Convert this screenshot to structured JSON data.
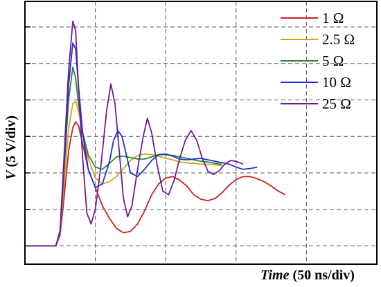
{
  "chart_data": {
    "type": "line",
    "title": "",
    "xlabel_var": "Time",
    "xlabel_unit": " (50 ns/div)",
    "ylabel_var": "V",
    "ylabel_unit": " (5 V/div)",
    "x_unit": "ns",
    "y_unit": "V",
    "xlim": [
      0,
      250
    ],
    "ylim": [
      -2.5,
      33.5
    ],
    "grid": true,
    "legend_position": "top-right",
    "series": [
      {
        "name": "1 Ω",
        "color": "#cc1f1f",
        "points": [
          [
            0,
            0
          ],
          [
            20,
            0
          ],
          [
            22,
            0
          ],
          [
            25,
            1.5
          ],
          [
            28,
            7
          ],
          [
            31,
            13
          ],
          [
            34,
            16.2
          ],
          [
            36,
            17
          ],
          [
            38,
            16.5
          ],
          [
            41,
            14
          ],
          [
            45,
            10.5
          ],
          [
            50,
            8
          ],
          [
            55,
            5.5
          ],
          [
            60,
            3.8
          ],
          [
            65,
            2.4
          ],
          [
            70,
            1.8
          ],
          [
            75,
            2
          ],
          [
            80,
            3
          ],
          [
            85,
            4.8
          ],
          [
            90,
            7
          ],
          [
            95,
            8.5
          ],
          [
            100,
            9.3
          ],
          [
            105,
            9.5
          ],
          [
            110,
            9
          ],
          [
            115,
            8.2
          ],
          [
            120,
            7
          ],
          [
            125,
            6.4
          ],
          [
            130,
            6.2
          ],
          [
            135,
            6.5
          ],
          [
            140,
            7.3
          ],
          [
            145,
            8.3
          ],
          [
            150,
            9.1
          ],
          [
            155,
            9.5
          ],
          [
            160,
            9.5
          ],
          [
            165,
            9.2
          ],
          [
            170,
            8.8
          ],
          [
            175,
            8.2
          ],
          [
            180,
            7.5
          ],
          [
            185,
            7
          ]
        ]
      },
      {
        "name": "2.5 Ω",
        "color": "#d6a11e",
        "points": [
          [
            0,
            0
          ],
          [
            20,
            0
          ],
          [
            22,
            0
          ],
          [
            25,
            1.8
          ],
          [
            28,
            9
          ],
          [
            31,
            16
          ],
          [
            34,
            19.5
          ],
          [
            36,
            19.8
          ],
          [
            38,
            18.5
          ],
          [
            41,
            15.5
          ],
          [
            45,
            12
          ],
          [
            50,
            9.3
          ],
          [
            55,
            8.5
          ],
          [
            60,
            8.8
          ],
          [
            65,
            9.5
          ],
          [
            70,
            10.6
          ],
          [
            75,
            11.7
          ],
          [
            80,
            12.4
          ],
          [
            85,
            12.6
          ],
          [
            90,
            12.5
          ],
          [
            95,
            12.3
          ],
          [
            100,
            12
          ],
          [
            105,
            11.8
          ],
          [
            110,
            11.5
          ],
          [
            115,
            11.4
          ],
          [
            120,
            11.3
          ],
          [
            125,
            11.2
          ],
          [
            130,
            11.2
          ],
          [
            135,
            11.1
          ],
          [
            140,
            11
          ]
        ]
      },
      {
        "name": "5 Ω",
        "color": "#2a8a2a",
        "points": [
          [
            0,
            0
          ],
          [
            20,
            0
          ],
          [
            22,
            0
          ],
          [
            25,
            2
          ],
          [
            28,
            11
          ],
          [
            31,
            20
          ],
          [
            34,
            24.5
          ],
          [
            36,
            23
          ],
          [
            38,
            19.5
          ],
          [
            41,
            15.5
          ],
          [
            45,
            12.5
          ],
          [
            50,
            10.8
          ],
          [
            55,
            10.5
          ],
          [
            60,
            11.3
          ],
          [
            65,
            12.2
          ],
          [
            70,
            12.3
          ],
          [
            75,
            12.1
          ],
          [
            80,
            11.9
          ],
          [
            85,
            11.9
          ],
          [
            90,
            12.2
          ],
          [
            95,
            12.5
          ],
          [
            100,
            12.5
          ],
          [
            105,
            12.4
          ],
          [
            110,
            12.2
          ],
          [
            115,
            12
          ],
          [
            120,
            11.8
          ],
          [
            125,
            11.6
          ],
          [
            130,
            11.5
          ],
          [
            135,
            11.3
          ],
          [
            140,
            11.2
          ]
        ]
      },
      {
        "name": "10 Ω",
        "color": "#1f2ed8",
        "points": [
          [
            0,
            0
          ],
          [
            20,
            0
          ],
          [
            22,
            0
          ],
          [
            25,
            2
          ],
          [
            28,
            12
          ],
          [
            31,
            22
          ],
          [
            34,
            27.8
          ],
          [
            36,
            27
          ],
          [
            38,
            22
          ],
          [
            41,
            15.5
          ],
          [
            45,
            10.5
          ],
          [
            50,
            8
          ],
          [
            55,
            8.5
          ],
          [
            60,
            11.5
          ],
          [
            63,
            14.5
          ],
          [
            66,
            15.8
          ],
          [
            69,
            15
          ],
          [
            72,
            12.5
          ],
          [
            75,
            10
          ],
          [
            80,
            9.5
          ],
          [
            85,
            10.5
          ],
          [
            90,
            11.7
          ],
          [
            95,
            12.5
          ],
          [
            100,
            12.6
          ],
          [
            105,
            12.3
          ],
          [
            110,
            11.9
          ],
          [
            115,
            11.8
          ],
          [
            120,
            11.9
          ],
          [
            125,
            12
          ],
          [
            130,
            11.8
          ],
          [
            135,
            11.6
          ],
          [
            140,
            11.4
          ],
          [
            145,
            11.2
          ],
          [
            150,
            10.8
          ],
          [
            155,
            10.5
          ],
          [
            160,
            10.6
          ],
          [
            165,
            10.8
          ]
        ]
      },
      {
        "name": "25 Ω",
        "color": "#6a1b9a",
        "points": [
          [
            0,
            0
          ],
          [
            20,
            0
          ],
          [
            22,
            0
          ],
          [
            25,
            2.2
          ],
          [
            28,
            13
          ],
          [
            31,
            24
          ],
          [
            34,
            30.8
          ],
          [
            36,
            29.5
          ],
          [
            38,
            22
          ],
          [
            41,
            12
          ],
          [
            44,
            4.5
          ],
          [
            47,
            3
          ],
          [
            50,
            5
          ],
          [
            54,
            11
          ],
          [
            58,
            18.5
          ],
          [
            61,
            22.2
          ],
          [
            64,
            19.5
          ],
          [
            67,
            13
          ],
          [
            70,
            6.5
          ],
          [
            73,
            4
          ],
          [
            76,
            5.5
          ],
          [
            80,
            10.5
          ],
          [
            84,
            15
          ],
          [
            87,
            17.5
          ],
          [
            90,
            15.5
          ],
          [
            94,
            11
          ],
          [
            98,
            7.5
          ],
          [
            102,
            7
          ],
          [
            106,
            9
          ],
          [
            110,
            12
          ],
          [
            114,
            14.5
          ],
          [
            118,
            15.8
          ],
          [
            122,
            14.5
          ],
          [
            126,
            12
          ],
          [
            130,
            10.2
          ],
          [
            134,
            9.8
          ],
          [
            138,
            10.3
          ],
          [
            142,
            11.2
          ],
          [
            146,
            11.7
          ],
          [
            150,
            11.6
          ],
          [
            155,
            11.2
          ]
        ]
      }
    ]
  }
}
